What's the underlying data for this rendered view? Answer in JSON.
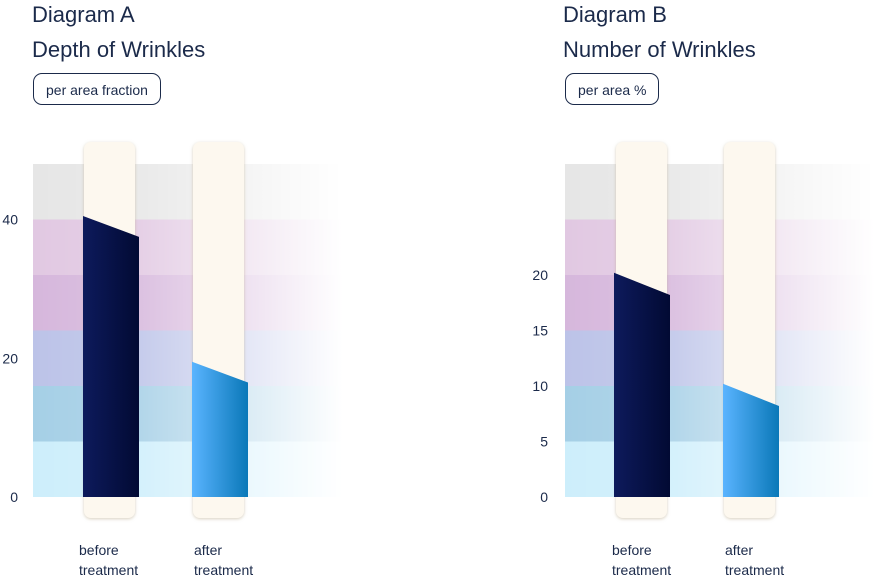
{
  "chart_data": [
    {
      "type": "bar",
      "title": "Diagram A",
      "subtitle": "Depth of Wrinkles",
      "unit": "per area fraction",
      "categories": [
        "before\ntreatment",
        "after\ntreatment"
      ],
      "values": [
        [
          40.5,
          37.5
        ],
        [
          19.5,
          16.5
        ]
      ],
      "yticks": [
        0,
        20,
        40
      ],
      "ylim": [
        0,
        48
      ],
      "band_step": 8,
      "grid": false,
      "colors": {
        "bar_before": [
          "#0d1a5c",
          "#020a33"
        ],
        "bar_after": [
          "#5ab4ff",
          "#0a78b8"
        ],
        "bands": [
          "#cdeefb",
          "#a5cfe6",
          "#bcc3e8",
          "#d6b7dc",
          "#e1c8e2",
          "#e6e6e6"
        ],
        "track": "#fdf8ef"
      }
    },
    {
      "type": "bar",
      "title": "Diagram B",
      "subtitle": "Number of Wrinkles",
      "unit": "per area %",
      "categories": [
        "before\ntreatment",
        "after\ntreatment"
      ],
      "values": [
        [
          20.2,
          18.2
        ],
        [
          10.2,
          8.2
        ]
      ],
      "yticks": [
        0,
        5,
        10,
        15,
        20
      ],
      "ylim": [
        0,
        30
      ],
      "band_step": 5,
      "grid": false,
      "colors": {
        "bar_before": [
          "#0d1a5c",
          "#020a33"
        ],
        "bar_after": [
          "#5ab4ff",
          "#0a78b8"
        ],
        "bands": [
          "#cdeefb",
          "#a5cfe6",
          "#bcc3e8",
          "#d6b7dc",
          "#e1c8e2",
          "#e6e6e6"
        ],
        "track": "#fdf8ef"
      }
    }
  ]
}
